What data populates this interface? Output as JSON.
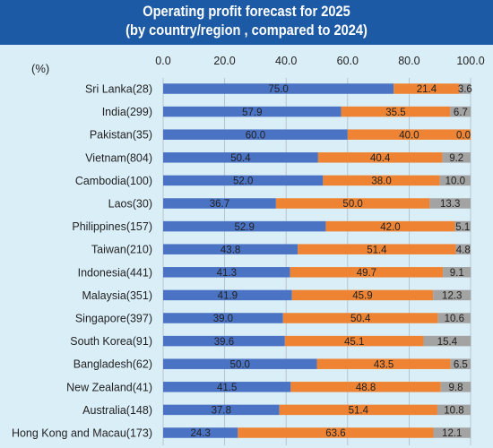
{
  "header": {
    "title_line1": "Operating profit forecast for 2025",
    "title_line2": "(by country/region , compared to 2024)"
  },
  "colors": {
    "header_bg": "#1d5aa6",
    "background": "#daeef8",
    "series": [
      "#4a73c4",
      "#ee8433",
      "#a3a3a3"
    ]
  },
  "chart_data": {
    "type": "bar",
    "orientation": "horizontal",
    "stacked": true,
    "title": "Operating profit forecast for 2025 (by country/region , compared to 2024)",
    "unit": "(%)",
    "xlim": [
      0,
      100
    ],
    "ticks": [
      "0.0",
      "20.0",
      "40.0",
      "60.0",
      "80.0",
      "100.0"
    ],
    "grid": true,
    "categories": [
      "Sri Lanka(28)",
      "India(299)",
      "Pakistan(35)",
      "Vietnam(804)",
      "Cambodia(100)",
      "Laos(30)",
      "Philippines(157)",
      "Taiwan(210)",
      "Indonesia(441)",
      "Malaysia(351)",
      "Singapore(397)",
      "South Korea(91)",
      "Bangladesh(62)",
      "New Zealand(41)",
      "Australia(148)",
      "Hong Kong and Macau(173)"
    ],
    "series": [
      {
        "values": [
          75.0,
          57.9,
          60.0,
          50.4,
          52.0,
          36.7,
          52.9,
          43.8,
          41.3,
          41.9,
          39.0,
          39.6,
          50.0,
          41.5,
          37.8,
          24.3
        ]
      },
      {
        "values": [
          21.4,
          35.5,
          40.0,
          40.4,
          38.0,
          50.0,
          42.0,
          51.4,
          49.7,
          45.9,
          50.4,
          45.1,
          43.5,
          48.8,
          51.4,
          63.6
        ]
      },
      {
        "values": [
          3.6,
          6.7,
          0.0,
          9.2,
          10.0,
          13.3,
          5.1,
          4.8,
          9.1,
          12.3,
          10.6,
          15.4,
          6.5,
          9.8,
          10.8,
          12.1
        ]
      }
    ]
  }
}
